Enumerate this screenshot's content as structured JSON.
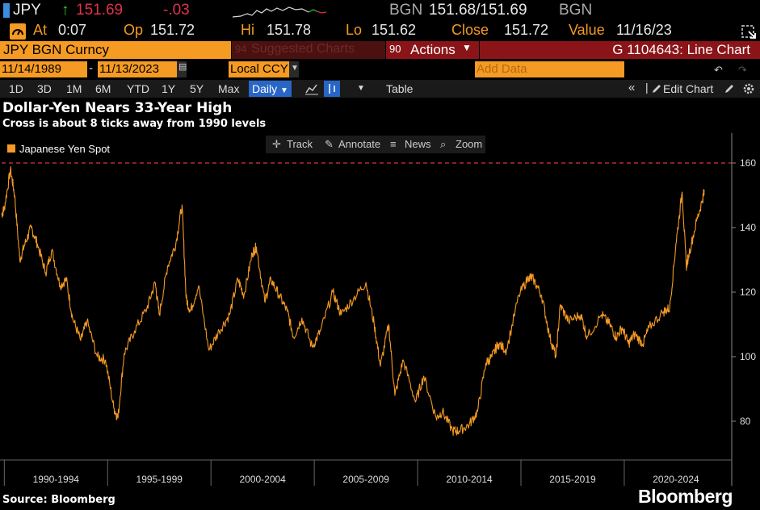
{
  "quote": {
    "ticker": "JPY",
    "last": "151.69",
    "change": "-.03",
    "source": "BGN",
    "bid_ask": "151.68/151.69",
    "source2": "BGN"
  },
  "stats": {
    "at_label": "At",
    "at_value": "0:07",
    "op_label": "Op",
    "op_value": "151.72",
    "hi_label": "Hi",
    "hi_value": "151.78",
    "lo_label": "Lo",
    "lo_value": "151.62",
    "close_label": "Close",
    "close_value": "151.72",
    "value_label": "Value",
    "value_date": "11/16/23"
  },
  "toolbar1": {
    "security": "JPY BGN Curncy",
    "suggested": "Suggested Charts",
    "suggested_prefix": "94",
    "actions_prefix": "90",
    "actions": "Actions",
    "gtitle": "G 1104643: Line Chart"
  },
  "toolbar2": {
    "start_date": "11/14/1989",
    "end_date": "11/13/2023",
    "currency": "Local CCY",
    "table": "Table",
    "add_data": "Add Data",
    "edit_chart": "Edit Chart"
  },
  "periods": [
    "1D",
    "3D",
    "1M",
    "6M",
    "YTD",
    "1Y",
    "5Y",
    "Max"
  ],
  "frequency": "Daily",
  "chart_title": "Dollar-Yen Nears 33-Year High",
  "chart_subtitle": "Cross is about 8 ticks away from 1990 levels",
  "tools": {
    "track": "Track",
    "annotate": "Annotate",
    "news": "News",
    "zoom": "Zoom"
  },
  "source_note": "Source: Bloomberg",
  "brand": "Bloomberg",
  "colors": {
    "series": "#f59a23",
    "reference_line": "#e0314b",
    "up": "#2fd12f",
    "down": "#e0314b",
    "accent": "#f59a23",
    "active": "#2766c7"
  },
  "chart_data": {
    "type": "line",
    "title": "Dollar-Yen Nears 33-Year High",
    "subtitle": "Cross is about 8 ticks away from 1990 levels",
    "series": [
      {
        "name": "Japanese Yen Spot",
        "color": "#f59a23",
        "points": [
          [
            1989.87,
            144
          ],
          [
            1990.0,
            146
          ],
          [
            1990.3,
            158
          ],
          [
            1990.5,
            150
          ],
          [
            1990.75,
            130
          ],
          [
            1991.0,
            135
          ],
          [
            1991.3,
            140
          ],
          [
            1991.6,
            135
          ],
          [
            1992.0,
            126
          ],
          [
            1992.3,
            133
          ],
          [
            1992.7,
            122
          ],
          [
            1993.0,
            124
          ],
          [
            1993.3,
            112
          ],
          [
            1993.7,
            105
          ],
          [
            1994.0,
            111
          ],
          [
            1994.5,
            100
          ],
          [
            1994.9,
            99
          ],
          [
            1995.3,
            84
          ],
          [
            1995.5,
            81
          ],
          [
            1995.8,
            101
          ],
          [
            1996.3,
            108
          ],
          [
            1996.9,
            115
          ],
          [
            1997.3,
            123
          ],
          [
            1997.5,
            113
          ],
          [
            1997.9,
            128
          ],
          [
            1998.3,
            135
          ],
          [
            1998.6,
            147
          ],
          [
            1998.8,
            118
          ],
          [
            1999.0,
            114
          ],
          [
            1999.4,
            122
          ],
          [
            1999.9,
            102
          ],
          [
            2000.4,
            108
          ],
          [
            2000.9,
            113
          ],
          [
            2001.3,
            124
          ],
          [
            2001.6,
            119
          ],
          [
            2002.0,
            132
          ],
          [
            2002.2,
            134
          ],
          [
            2002.6,
            117
          ],
          [
            2002.9,
            124
          ],
          [
            2003.3,
            119
          ],
          [
            2003.7,
            114
          ],
          [
            2004.0,
            106
          ],
          [
            2004.4,
            112
          ],
          [
            2004.9,
            103
          ],
          [
            2005.3,
            108
          ],
          [
            2005.9,
            120
          ],
          [
            2006.3,
            113
          ],
          [
            2006.9,
            118
          ],
          [
            2007.5,
            123
          ],
          [
            2007.9,
            110
          ],
          [
            2008.2,
            97
          ],
          [
            2008.6,
            110
          ],
          [
            2008.9,
            88
          ],
          [
            2009.3,
            99
          ],
          [
            2009.9,
            86
          ],
          [
            2010.3,
            94
          ],
          [
            2010.9,
            81
          ],
          [
            2011.2,
            83
          ],
          [
            2011.7,
            77
          ],
          [
            2012.0,
            77
          ],
          [
            2012.5,
            79
          ],
          [
            2012.9,
            83
          ],
          [
            2013.3,
            98
          ],
          [
            2013.6,
            100
          ],
          [
            2013.9,
            104
          ],
          [
            2014.3,
            102
          ],
          [
            2014.9,
            119
          ],
          [
            2015.4,
            125
          ],
          [
            2015.6,
            124
          ],
          [
            2016.0,
            119
          ],
          [
            2016.4,
            106
          ],
          [
            2016.7,
            100
          ],
          [
            2016.9,
            116
          ],
          [
            2017.3,
            111
          ],
          [
            2017.9,
            113
          ],
          [
            2018.2,
            106
          ],
          [
            2018.9,
            113
          ],
          [
            2019.3,
            110
          ],
          [
            2019.6,
            106
          ],
          [
            2019.9,
            109
          ],
          [
            2020.2,
            104
          ],
          [
            2020.5,
            107
          ],
          [
            2020.9,
            104
          ],
          [
            2021.2,
            109
          ],
          [
            2021.9,
            114
          ],
          [
            2022.2,
            115
          ],
          [
            2022.5,
            135
          ],
          [
            2022.8,
            151
          ],
          [
            2023.0,
            128
          ],
          [
            2023.1,
            131
          ],
          [
            2023.5,
            142
          ],
          [
            2023.8,
            149
          ],
          [
            2023.87,
            151.7
          ]
        ]
      }
    ],
    "reference_line": 160,
    "x_tick_labels": [
      "1990-1994",
      "1995-1999",
      "2000-2004",
      "2005-2009",
      "2010-2014",
      "2015-2019",
      "2020-2024"
    ],
    "x_range": [
      1989.87,
      2025.2
    ],
    "y_ticks": [
      80,
      100,
      120,
      140,
      160
    ],
    "ylim": [
      68,
      168
    ],
    "legend_position": "top-left",
    "grid": false
  }
}
